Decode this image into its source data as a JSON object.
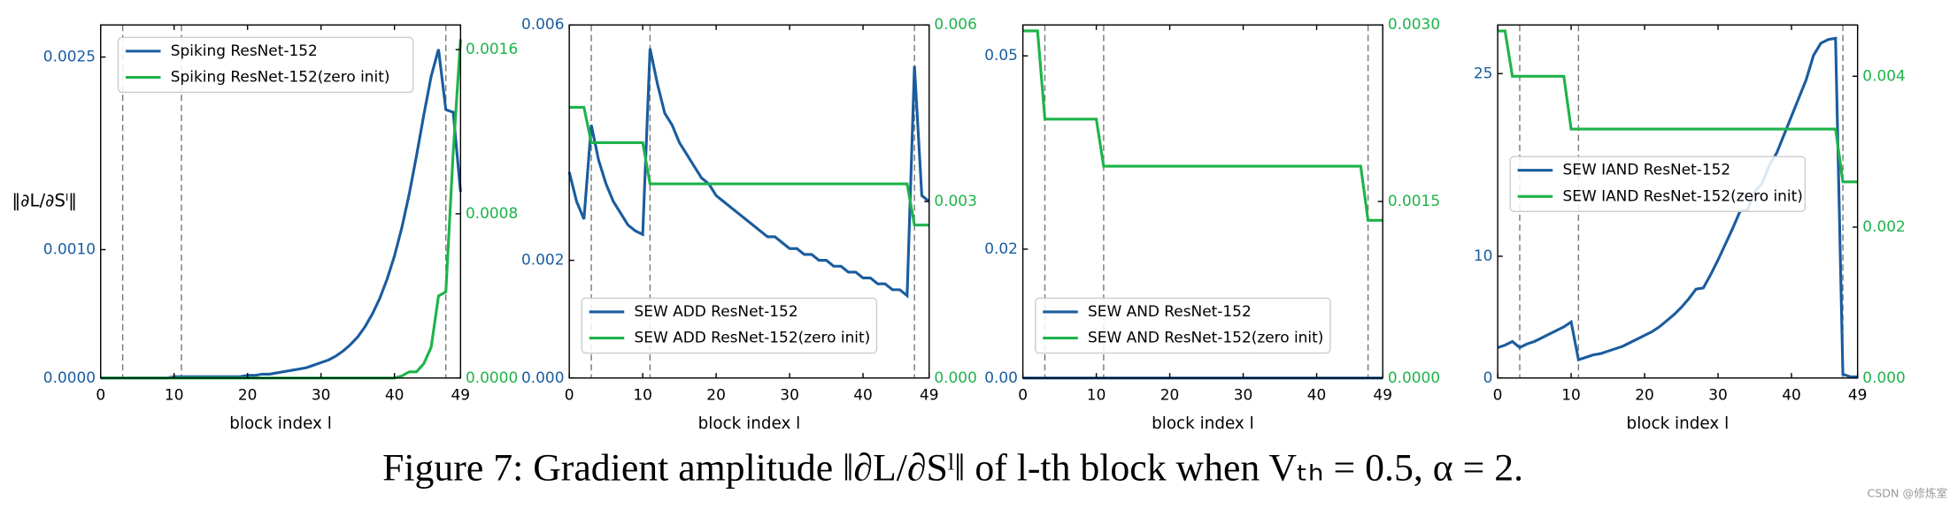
{
  "chart_data": [
    {
      "type": "line",
      "xlabel": "block index l",
      "ylabel": "‖∂L/∂Sˡ‖",
      "legend": "upper left",
      "x": [
        0,
        1,
        2,
        3,
        4,
        5,
        6,
        7,
        8,
        9,
        10,
        11,
        12,
        13,
        14,
        15,
        16,
        17,
        18,
        19,
        20,
        21,
        22,
        23,
        24,
        25,
        26,
        27,
        28,
        29,
        30,
        31,
        32,
        33,
        34,
        35,
        36,
        37,
        38,
        39,
        40,
        41,
        42,
        43,
        44,
        45,
        46,
        47,
        48,
        49
      ],
      "xlim": [
        0,
        49
      ],
      "xticks": [
        0,
        10,
        20,
        30,
        40,
        49
      ],
      "vlines": [
        3,
        11,
        47
      ],
      "ylim": [
        0,
        0.00275
      ],
      "yticks": [
        {
          "value": 0,
          "label": "0.0000"
        },
        {
          "value": 0.001,
          "label": "0.0010"
        },
        {
          "value": 0.0025,
          "label": "0.0025"
        }
      ],
      "y2lim": [
        0,
        0.00172
      ],
      "y2ticks": [
        {
          "value": 0,
          "label": "0.0000"
        },
        {
          "value": 0.0008,
          "label": "0.0008"
        },
        {
          "value": 0.0016,
          "label": "0.0016"
        }
      ],
      "series": [
        {
          "name": "Spiking ResNet-152",
          "color": "#1a5c9e",
          "values": [
            0,
            0,
            0,
            0,
            0,
            0,
            0,
            0,
            0,
            0,
            1e-05,
            1e-05,
            1e-05,
            1e-05,
            1e-05,
            1e-05,
            1e-05,
            1e-05,
            1e-05,
            1e-05,
            2e-05,
            2e-05,
            3e-05,
            3e-05,
            4e-05,
            5e-05,
            6e-05,
            7e-05,
            8e-05,
            0.0001,
            0.00012,
            0.00014,
            0.00017,
            0.00021,
            0.00026,
            0.00032,
            0.0004,
            0.0005,
            0.00062,
            0.00077,
            0.00095,
            0.00117,
            0.00143,
            0.00173,
            0.00205,
            0.00235,
            0.00256,
            0.00209,
            0.00207,
            0.00145
          ]
        },
        {
          "name": "Spiking ResNet-152(zero init)",
          "color": "#1eb34a",
          "axis": "y2",
          "values": [
            0,
            0,
            0,
            0,
            0,
            0,
            0,
            0,
            0,
            0,
            0,
            0,
            0,
            0,
            0,
            0,
            0,
            0,
            0,
            0,
            0,
            0,
            0,
            0,
            0,
            0,
            0,
            0,
            0,
            0,
            0,
            0,
            0,
            0,
            0,
            0,
            0,
            0,
            0,
            0,
            0,
            1e-05,
            3e-05,
            3e-05,
            7e-05,
            0.00015,
            0.0004,
            0.00042,
            0.0011,
            0.00165
          ]
        }
      ]
    },
    {
      "type": "line",
      "xlabel": "block index l",
      "legend": "lower left",
      "x": [
        0,
        1,
        2,
        3,
        4,
        5,
        6,
        7,
        8,
        9,
        10,
        11,
        12,
        13,
        14,
        15,
        16,
        17,
        18,
        19,
        20,
        21,
        22,
        23,
        24,
        25,
        26,
        27,
        28,
        29,
        30,
        31,
        32,
        33,
        34,
        35,
        36,
        37,
        38,
        39,
        40,
        41,
        42,
        43,
        44,
        45,
        46,
        47,
        48,
        49
      ],
      "xlim": [
        0,
        49
      ],
      "xticks": [
        0,
        10,
        20,
        30,
        40,
        49
      ],
      "vlines": [
        3,
        11,
        47
      ],
      "ylim": [
        0,
        0.006
      ],
      "yticks": [
        {
          "value": 0,
          "label": "0.000"
        },
        {
          "value": 0.002,
          "label": "0.002"
        },
        {
          "value": 0.006,
          "label": "0.006"
        }
      ],
      "y2lim": [
        0,
        0.006
      ],
      "y2ticks": [
        {
          "value": 0,
          "label": "0.000"
        },
        {
          "value": 0.003,
          "label": "0.003"
        },
        {
          "value": 0.006,
          "label": "0.006"
        }
      ],
      "series": [
        {
          "name": "SEW ADD ResNet-152",
          "color": "#1a5c9e",
          "values": [
            0.0035,
            0.003,
            0.0027,
            0.0043,
            0.0037,
            0.0033,
            0.003,
            0.0028,
            0.0026,
            0.0025,
            0.00244,
            0.0056,
            0.005,
            0.0045,
            0.0043,
            0.004,
            0.0038,
            0.0036,
            0.0034,
            0.0033,
            0.0031,
            0.003,
            0.0029,
            0.0028,
            0.0027,
            0.0026,
            0.0025,
            0.0024,
            0.0024,
            0.0023,
            0.0022,
            0.0022,
            0.0021,
            0.0021,
            0.002,
            0.002,
            0.0019,
            0.0019,
            0.0018,
            0.0018,
            0.0017,
            0.0017,
            0.0016,
            0.0016,
            0.0015,
            0.0015,
            0.0014,
            0.0053,
            0.0031,
            0.003
          ]
        },
        {
          "name": "SEW ADD ResNet-152(zero init)",
          "color": "#1eb34a",
          "axis": "y2",
          "values": [
            0.0046,
            0.0046,
            0.0046,
            0.004,
            0.004,
            0.004,
            0.004,
            0.004,
            0.004,
            0.004,
            0.004,
            0.0033,
            0.0033,
            0.0033,
            0.0033,
            0.0033,
            0.0033,
            0.0033,
            0.0033,
            0.0033,
            0.0033,
            0.0033,
            0.0033,
            0.0033,
            0.0033,
            0.0033,
            0.0033,
            0.0033,
            0.0033,
            0.0033,
            0.0033,
            0.0033,
            0.0033,
            0.0033,
            0.0033,
            0.0033,
            0.0033,
            0.0033,
            0.0033,
            0.0033,
            0.0033,
            0.0033,
            0.0033,
            0.0033,
            0.0033,
            0.0033,
            0.0033,
            0.0026,
            0.0026,
            0.0026
          ]
        }
      ]
    },
    {
      "type": "line",
      "xlabel": "block index l",
      "legend": "lower left",
      "x": [
        0,
        1,
        2,
        3,
        4,
        5,
        6,
        7,
        8,
        9,
        10,
        11,
        12,
        13,
        14,
        15,
        16,
        17,
        18,
        19,
        20,
        21,
        22,
        23,
        24,
        25,
        26,
        27,
        28,
        29,
        30,
        31,
        32,
        33,
        34,
        35,
        36,
        37,
        38,
        39,
        40,
        41,
        42,
        43,
        44,
        45,
        46,
        47,
        48,
        49
      ],
      "xlim": [
        0,
        49
      ],
      "xticks": [
        0,
        10,
        20,
        30,
        40,
        49
      ],
      "vlines": [
        3,
        11,
        47
      ],
      "ylim": [
        0,
        0.0548
      ],
      "yticks": [
        {
          "value": 0,
          "label": "0.00"
        },
        {
          "value": 0.02,
          "label": "0.02"
        },
        {
          "value": 0.05,
          "label": "0.05"
        }
      ],
      "y2lim": [
        0,
        0.003
      ],
      "y2ticks": [
        {
          "value": 0,
          "label": "0.0000"
        },
        {
          "value": 0.0015,
          "label": "0.0015"
        },
        {
          "value": 0.003,
          "label": "0.0030"
        }
      ],
      "series": [
        {
          "name": "SEW AND ResNet-152",
          "color": "#1a5c9e",
          "values": [
            0,
            0,
            0,
            0,
            0,
            0,
            0,
            0,
            0,
            0,
            0,
            0,
            0,
            0,
            0,
            0,
            0,
            0,
            0,
            0,
            0,
            0,
            0,
            0,
            0,
            0,
            0,
            0,
            0,
            0,
            0,
            0,
            0,
            0,
            0,
            0,
            0,
            0,
            0,
            0,
            0,
            0,
            0,
            0,
            0,
            0,
            0,
            0,
            0,
            0
          ]
        },
        {
          "name": "SEW AND ResNet-152(zero init)",
          "color": "#1eb34a",
          "axis": "y2",
          "values": [
            0.00295,
            0.00295,
            0.00295,
            0.0022,
            0.0022,
            0.0022,
            0.0022,
            0.0022,
            0.0022,
            0.0022,
            0.0022,
            0.0018,
            0.0018,
            0.0018,
            0.0018,
            0.0018,
            0.0018,
            0.0018,
            0.0018,
            0.0018,
            0.0018,
            0.0018,
            0.0018,
            0.0018,
            0.0018,
            0.0018,
            0.0018,
            0.0018,
            0.0018,
            0.0018,
            0.0018,
            0.0018,
            0.0018,
            0.0018,
            0.0018,
            0.0018,
            0.0018,
            0.0018,
            0.0018,
            0.0018,
            0.0018,
            0.0018,
            0.0018,
            0.0018,
            0.0018,
            0.0018,
            0.0018,
            0.00134,
            0.00134,
            0.00134
          ]
        }
      ]
    },
    {
      "type": "line",
      "xlabel": "block index l",
      "legend": "center left",
      "x": [
        0,
        1,
        2,
        3,
        4,
        5,
        6,
        7,
        8,
        9,
        10,
        11,
        12,
        13,
        14,
        15,
        16,
        17,
        18,
        19,
        20,
        21,
        22,
        23,
        24,
        25,
        26,
        27,
        28,
        29,
        30,
        31,
        32,
        33,
        34,
        35,
        36,
        37,
        38,
        39,
        40,
        41,
        42,
        43,
        44,
        45,
        46,
        47,
        48,
        49
      ],
      "xlim": [
        0,
        49
      ],
      "xticks": [
        0,
        10,
        20,
        30,
        40,
        49
      ],
      "vlines": [
        3,
        11,
        47
      ],
      "ylim": [
        0,
        29
      ],
      "yticks": [
        0,
        10,
        25
      ],
      "y2lim": [
        0,
        0.00468
      ],
      "y2ticks": [
        {
          "value": 0,
          "label": "0.000"
        },
        {
          "value": 0.002,
          "label": "0.002"
        },
        {
          "value": 0.004,
          "label": "0.004"
        }
      ],
      "series": [
        {
          "name": "SEW IAND ResNet-152",
          "color": "#1a5c9e",
          "values": [
            2.5,
            2.7,
            3.0,
            2.5,
            2.8,
            3.0,
            3.3,
            3.6,
            3.9,
            4.2,
            4.6,
            1.5,
            1.7,
            1.9,
            2.0,
            2.2,
            2.4,
            2.6,
            2.9,
            3.2,
            3.5,
            3.8,
            4.2,
            4.7,
            5.2,
            5.8,
            6.5,
            7.3,
            7.4,
            8.5,
            9.7,
            11.0,
            12.3,
            13.7,
            13.8,
            15.3,
            16.0,
            17.5,
            18.5,
            20.0,
            21.5,
            23.0,
            24.5,
            26.5,
            27.5,
            27.8,
            27.9,
            0.3,
            0.1,
            0.1
          ]
        },
        {
          "name": "SEW IAND ResNet-152(zero init)",
          "color": "#1eb34a",
          "axis": "y2",
          "values": [
            0.0046,
            0.0046,
            0.004,
            0.004,
            0.004,
            0.004,
            0.004,
            0.004,
            0.004,
            0.004,
            0.0033,
            0.0033,
            0.0033,
            0.0033,
            0.0033,
            0.0033,
            0.0033,
            0.0033,
            0.0033,
            0.0033,
            0.0033,
            0.0033,
            0.0033,
            0.0033,
            0.0033,
            0.0033,
            0.0033,
            0.0033,
            0.0033,
            0.0033,
            0.0033,
            0.0033,
            0.0033,
            0.0033,
            0.0033,
            0.0033,
            0.0033,
            0.0033,
            0.0033,
            0.0033,
            0.0033,
            0.0033,
            0.0033,
            0.0033,
            0.0033,
            0.0033,
            0.0033,
            0.0026,
            0.0026,
            0.0026
          ]
        }
      ]
    }
  ],
  "caption": "Figure 7: Gradient amplitude ‖∂L/∂Sˡ‖ of l-th block when Vₜₕ = 0.5, α = 2.",
  "watermark": "CSDN @修炼室"
}
